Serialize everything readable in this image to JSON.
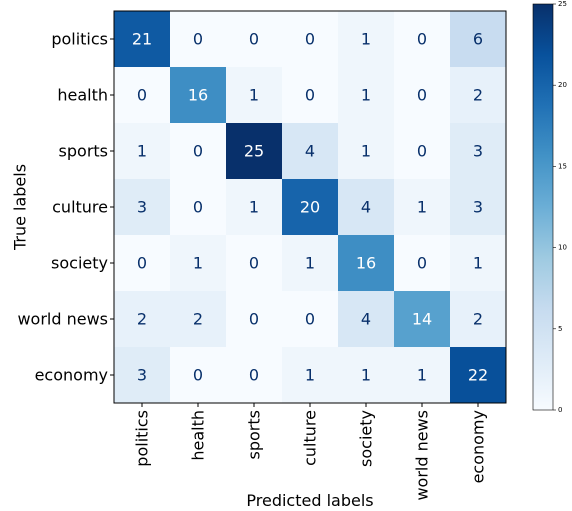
{
  "chart_data": {
    "type": "heatmap",
    "title": "",
    "xlabel": "Predicted labels",
    "ylabel": "True labels",
    "rows": [
      "politics",
      "health",
      "sports",
      "culture",
      "society",
      "world news",
      "economy"
    ],
    "columns": [
      "politics",
      "health",
      "sports",
      "culture",
      "society",
      "world news",
      "economy"
    ],
    "values": [
      [
        21,
        0,
        0,
        0,
        1,
        0,
        6
      ],
      [
        0,
        16,
        1,
        0,
        1,
        0,
        2
      ],
      [
        1,
        0,
        25,
        4,
        1,
        0,
        3
      ],
      [
        3,
        0,
        1,
        20,
        4,
        1,
        3
      ],
      [
        0,
        1,
        0,
        1,
        16,
        0,
        1
      ],
      [
        2,
        2,
        0,
        0,
        4,
        14,
        2
      ],
      [
        3,
        0,
        0,
        1,
        1,
        1,
        22
      ]
    ],
    "vmin": 0,
    "vmax": 25,
    "colormap": "Blues",
    "colorbar_ticks": [
      0,
      5,
      10,
      15,
      20,
      25
    ]
  }
}
